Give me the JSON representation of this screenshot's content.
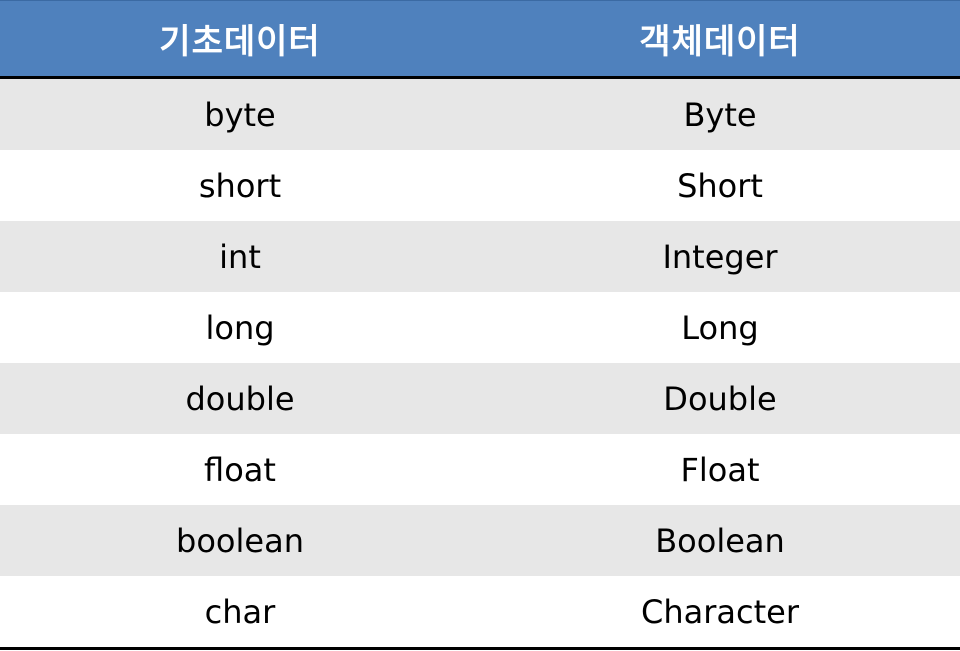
{
  "header": {
    "col1": "기초데이터",
    "col2": "객체데이터"
  },
  "rows": [
    {
      "primitive": "byte",
      "wrapper": "Byte"
    },
    {
      "primitive": "short",
      "wrapper": "Short"
    },
    {
      "primitive": "int",
      "wrapper": "Integer"
    },
    {
      "primitive": "long",
      "wrapper": "Long"
    },
    {
      "primitive": "double",
      "wrapper": "Double"
    },
    {
      "primitive": "float",
      "wrapper": "Float"
    },
    {
      "primitive": "boolean",
      "wrapper": "Boolean"
    },
    {
      "primitive": "char",
      "wrapper": "Character"
    }
  ],
  "colors": {
    "header_bg": "#4f81bd",
    "band_gray": "#e7e7e7",
    "band_white": "#ffffff",
    "rule": "#000000"
  }
}
